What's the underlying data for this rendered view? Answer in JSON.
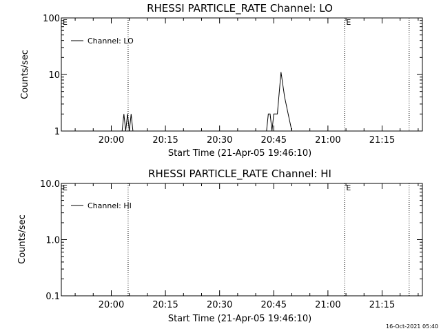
{
  "chart_data": [
    {
      "type": "line",
      "title": "RHESSI PARTICLE_RATE Channel: LO",
      "xlabel": "Start Time (21-Apr-05 19:46:10)",
      "ylabel": "Counts/sec",
      "x_tick_labels": [
        "20:00",
        "20:15",
        "20:30",
        "20:45",
        "21:00",
        "21:15"
      ],
      "y_scale": "log",
      "ylim": [
        1,
        100
      ],
      "y_tick_labels": [
        "1",
        "10",
        "100"
      ],
      "xlim": [
        "19:46:10",
        "21:26:10"
      ],
      "legend_position": "top-left",
      "series": [
        {
          "name": "Channel: LO",
          "x": [
            "20:03:00",
            "20:03:30",
            "20:04:00",
            "20:04:30",
            "20:05:00",
            "20:05:30",
            "20:06:00",
            "20:43:00",
            "20:43:30",
            "20:44:00",
            "20:44:30",
            "20:45:00",
            "20:46:00",
            "20:47:00",
            "20:48:00",
            "20:49:00",
            "20:50:00"
          ],
          "values": [
            1,
            2,
            1,
            2,
            1,
            2,
            1,
            1,
            2,
            2,
            1,
            2,
            2,
            11,
            4,
            2,
            1
          ]
        }
      ],
      "markers": [
        {
          "label": "E",
          "x": "19:46:10"
        },
        {
          "label": "",
          "x": "20:04:40"
        },
        {
          "label": "E",
          "x": "21:04:40"
        },
        {
          "label": "",
          "x": "21:22:30"
        }
      ]
    },
    {
      "type": "line",
      "title": "RHESSI PARTICLE_RATE Channel: HI",
      "xlabel": "Start Time (21-Apr-05 19:46:10)",
      "ylabel": "Counts/sec",
      "x_tick_labels": [
        "20:00",
        "20:15",
        "20:30",
        "20:45",
        "21:00",
        "21:15"
      ],
      "y_scale": "log",
      "ylim": [
        0.1,
        10
      ],
      "y_tick_labels": [
        "0.1",
        "1.0",
        "10.0"
      ],
      "xlim": [
        "19:46:10",
        "21:26:10"
      ],
      "legend_position": "top-left",
      "series": [
        {
          "name": "Channel: HI",
          "x": [],
          "values": []
        }
      ],
      "markers": [
        {
          "label": "E",
          "x": "19:46:10"
        },
        {
          "label": "",
          "x": "20:04:40"
        },
        {
          "label": "E",
          "x": "21:04:40"
        },
        {
          "label": "",
          "x": "21:22:30"
        }
      ]
    }
  ],
  "footer": {
    "timestamp": "16-Oct-2021 05:40"
  }
}
